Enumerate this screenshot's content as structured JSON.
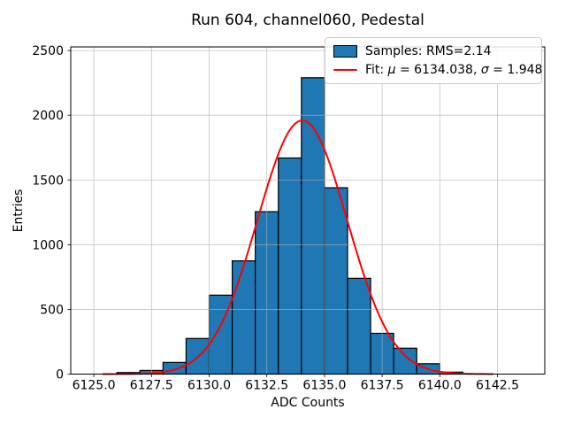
{
  "figure": {
    "title": "Run 604, channel060, Pedestal",
    "xlabel": "ADC Counts",
    "ylabel": "Entries"
  },
  "legend": {
    "samples": {
      "label": "Samples: RMS=2.14"
    },
    "fit": {
      "prefix": "Fit: ",
      "mu_symbol": "μ",
      "mu_text": " = 6134.038, ",
      "sigma_symbol": "σ",
      "sigma_text": " = 1.948"
    }
  },
  "chart_data": {
    "type": "bar",
    "subtype": "histogram",
    "title": "Run 604, channel060, Pedestal",
    "xlabel": "ADC Counts",
    "ylabel": "Entries",
    "bin_edges": [
      6126,
      6127,
      6128,
      6129,
      6130,
      6131,
      6132,
      6133,
      6134,
      6135,
      6136,
      6137,
      6138,
      6139,
      6140,
      6141
    ],
    "counts": [
      12,
      28,
      90,
      275,
      610,
      875,
      1255,
      1670,
      2290,
      1440,
      740,
      315,
      200,
      80,
      15
    ],
    "samples_rms": 2.14,
    "fit": {
      "type": "gaussian",
      "mu": 6134.038,
      "sigma": 1.948,
      "amplitude": 1960,
      "x_start": 6125.4,
      "x_end": 6142.3
    },
    "xlim": [
      6124.0,
      6144.55
    ],
    "ylim": [
      0,
      2528
    ],
    "xticks": [
      6125.0,
      6127.5,
      6130.0,
      6132.5,
      6135.0,
      6137.5,
      6140.0,
      6142.5
    ],
    "xtick_labels": [
      "6125.0",
      "6127.5",
      "6130.0",
      "6132.5",
      "6135.0",
      "6137.5",
      "6140.0",
      "6142.5"
    ],
    "yticks": [
      0,
      500,
      1000,
      1500,
      2000,
      2500
    ],
    "ytick_labels": [
      "0",
      "500",
      "1000",
      "1500",
      "2000",
      "2500"
    ],
    "grid": true,
    "legend_position": "upper right",
    "legend_entries": [
      "Samples: RMS=2.14",
      "Fit: μ = 6134.038, σ = 1.948"
    ],
    "colors": {
      "bar_fill": "#1f77b4",
      "bar_edge": "#000000",
      "fit_line": "#ff0000",
      "grid": "#b0b0b0",
      "spine": "#000000"
    }
  }
}
